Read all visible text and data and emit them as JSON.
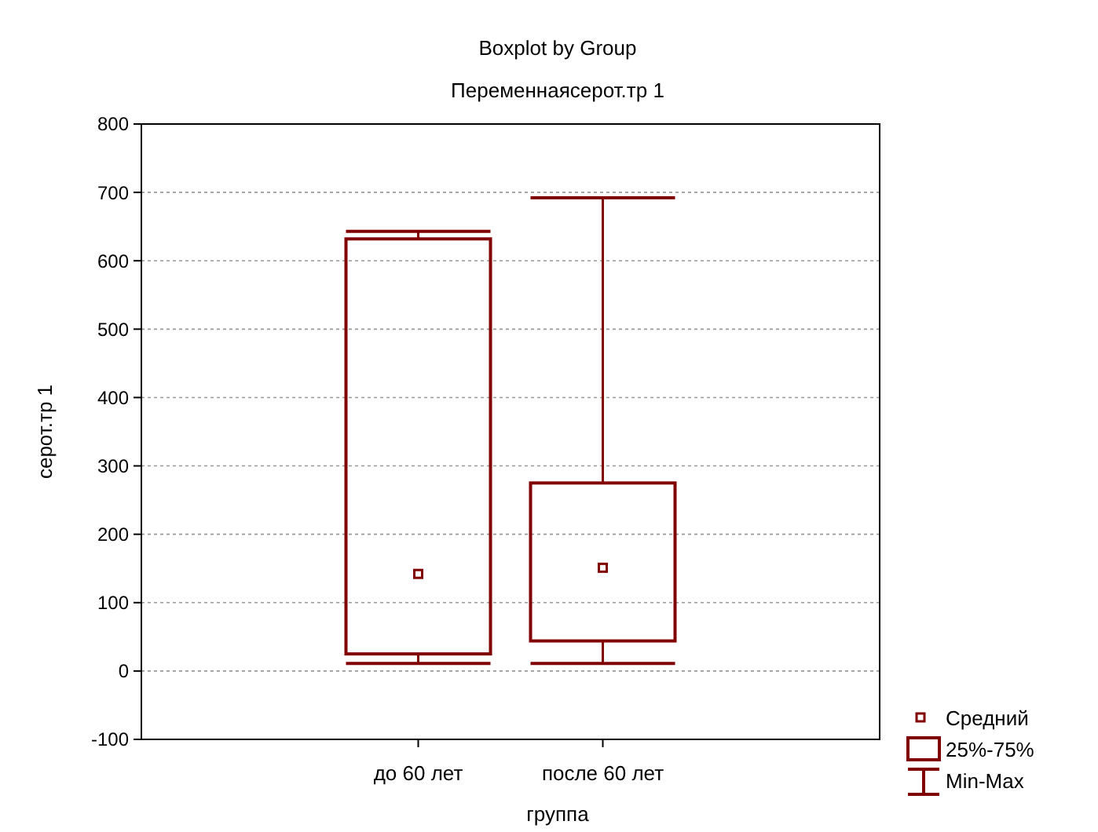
{
  "chart_data": {
    "type": "box",
    "title": "Boxplot by Group",
    "subtitle": "Переменнаясерот.тр 1",
    "xlabel": "группа",
    "ylabel": "серот.тр 1",
    "categories": [
      "до 60 лет",
      "после 60 лет"
    ],
    "series": [
      {
        "name": "Средний",
        "color": "#800000",
        "boxes": [
          {
            "low": 11,
            "q1": 25,
            "q3": 632,
            "high": 643,
            "mean": 142
          },
          {
            "low": 11,
            "q1": 44,
            "q3": 275,
            "high": 692,
            "mean": 151
          }
        ]
      }
    ],
    "annotations": [
      "25%-75%",
      "Min-Max"
    ],
    "ylim": [
      -100,
      800
    ],
    "yticks": [
      -100,
      0,
      100,
      200,
      300,
      400,
      500,
      600,
      700,
      800
    ],
    "grid": "y",
    "legend": "bottom right",
    "marker": "square"
  }
}
